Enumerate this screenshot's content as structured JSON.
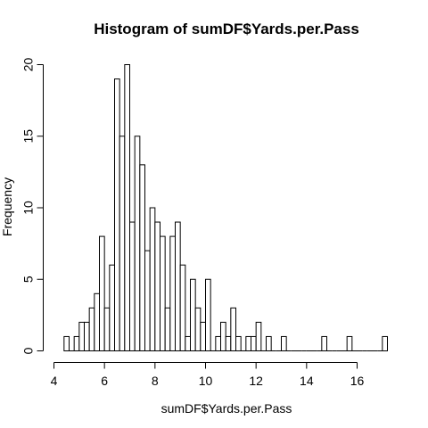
{
  "chart_data": {
    "type": "bar",
    "title": "Histogram of sumDF$Yards.per.Pass",
    "xlabel": "sumDF$Yards.per.Pass",
    "ylabel": "Frequency",
    "xlim": [
      4,
      17.2
    ],
    "ylim": [
      0,
      20
    ],
    "x_ticks": [
      4,
      6,
      8,
      10,
      12,
      14,
      16
    ],
    "y_ticks": [
      0,
      5,
      10,
      15,
      20
    ],
    "bin_width": 0.2,
    "bin_starts": [
      4.4,
      4.6,
      4.8,
      5.0,
      5.2,
      5.4,
      5.6,
      5.8,
      6.0,
      6.2,
      6.4,
      6.6,
      6.8,
      7.0,
      7.2,
      7.4,
      7.6,
      7.8,
      8.0,
      8.2,
      8.4,
      8.6,
      8.8,
      9.0,
      9.2,
      9.4,
      9.6,
      9.8,
      10.0,
      10.2,
      10.4,
      10.6,
      10.8,
      11.0,
      11.2,
      11.4,
      11.6,
      11.8,
      12.0,
      12.2,
      12.4,
      12.6,
      12.8,
      13.0,
      13.2,
      13.4,
      13.6,
      13.8,
      14.0,
      14.2,
      14.4,
      14.6,
      14.8,
      15.0,
      15.2,
      15.4,
      15.6,
      15.8,
      16.0,
      16.2,
      16.4,
      16.6,
      16.8,
      17.0
    ],
    "values": [
      1,
      0,
      1,
      2,
      2,
      3,
      4,
      8,
      3,
      6,
      19,
      15,
      20,
      9,
      15,
      13,
      7,
      10,
      9,
      8,
      3,
      8,
      9,
      6,
      1,
      5,
      3,
      2,
      5,
      0,
      1,
      2,
      1,
      3,
      1,
      0,
      1,
      1,
      2,
      0,
      1,
      0,
      0,
      1,
      0,
      0,
      0,
      0,
      0,
      0,
      0,
      1,
      0,
      0,
      0,
      0,
      1,
      0,
      0,
      0,
      0,
      0,
      0,
      1
    ],
    "grid": false,
    "legend": "none"
  }
}
